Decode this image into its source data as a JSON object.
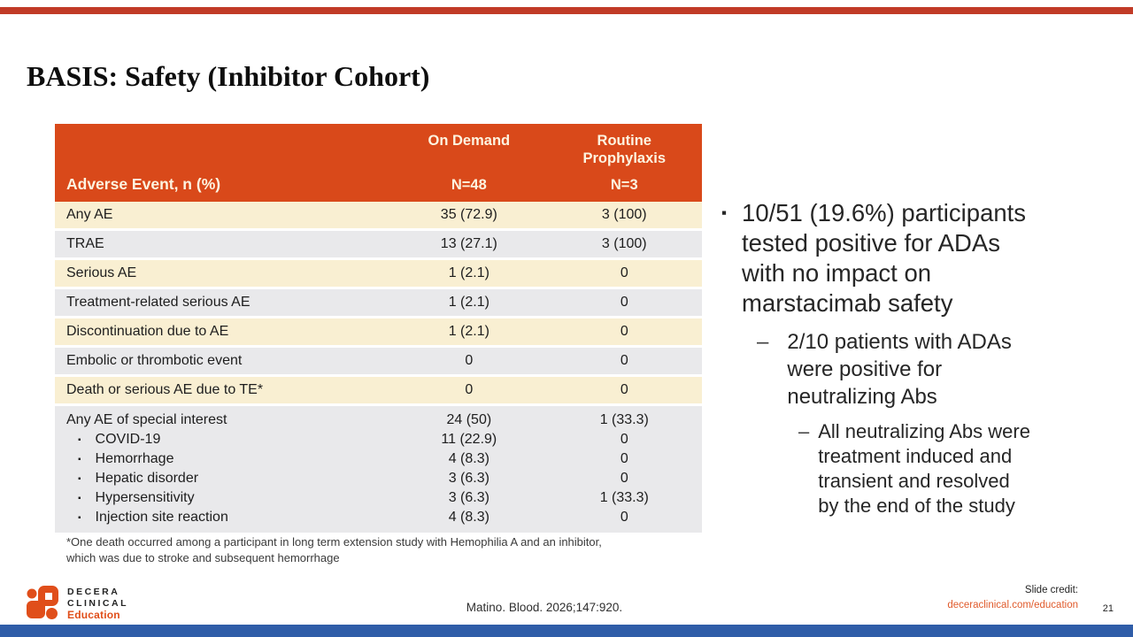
{
  "colors": {
    "top_bar": "#c13b27",
    "bottom_bar": "#2f5da8",
    "header_orange": "#d9491a",
    "row_cream": "#f9efd2",
    "row_gray": "#e9e9eb",
    "link_orange": "#e05a2b",
    "logo_orange": "#e04e1a"
  },
  "title": "BASIS: Safety (Inhibitor Cohort)",
  "table": {
    "header": {
      "col1": "Adverse Event, n (%)",
      "col2_group": "On Demand",
      "col2_n": "N=48",
      "col3_group_lines": [
        "Routine",
        "Prophylaxis"
      ],
      "col3_n": "N=3"
    },
    "rows": [
      {
        "label": "Any AE",
        "od": "35 (72.9)",
        "rp": "3 (100)",
        "shade": "cream"
      },
      {
        "label": "TRAE",
        "od": "13 (27.1)",
        "rp": "3 (100)",
        "shade": "gray"
      },
      {
        "label": "Serious AE",
        "od": "1 (2.1)",
        "rp": "0",
        "shade": "cream"
      },
      {
        "label": "Treatment-related serious AE",
        "od": "1 (2.1)",
        "rp": "0",
        "shade": "gray"
      },
      {
        "label": "Discontinuation due to AE",
        "od": "1 (2.1)",
        "rp": "0",
        "shade": "cream"
      },
      {
        "label": "Embolic or thrombotic event",
        "od": "0",
        "rp": "0",
        "shade": "gray"
      },
      {
        "label": "Death or serious AE due to TE*",
        "od": "0",
        "rp": "0",
        "shade": "cream"
      }
    ],
    "special_block": {
      "shade": "gray",
      "bullet_marker": "▪",
      "label": "Any AE of special interest",
      "od": "24 (50)",
      "rp": "1 (33.3)",
      "items": [
        {
          "label": "COVID-19",
          "od": "11 (22.9)",
          "rp": "0"
        },
        {
          "label": "Hemorrhage",
          "od": "4 (8.3)",
          "rp": "0"
        },
        {
          "label": "Hepatic disorder",
          "od": "3 (6.3)",
          "rp": "0"
        },
        {
          "label": "Hypersensitivity",
          "od": "3 (6.3)",
          "rp": "1 (33.3)"
        },
        {
          "label": "Injection site reaction",
          "od": "4 (8.3)",
          "rp": "0"
        }
      ]
    },
    "footnote_lines": [
      "*One death occurred among a participant in long term extension study with Hemophilia A and an inhibitor,",
      "which was due to stroke and subsequent hemorrhage"
    ]
  },
  "bullets": {
    "l1": {
      "marker": "▪",
      "lines": [
        "10/51 (19.6%) participants",
        "tested positive for ADAs",
        "with no impact on",
        "marstacimab safety"
      ]
    },
    "l2": {
      "marker": "–",
      "lines": [
        "2/10 patients with ADAs",
        "were positive for",
        "neutralizing Abs"
      ]
    },
    "l3": {
      "marker": "–",
      "lines": [
        "All neutralizing Abs were",
        "treatment induced and",
        "transient and resolved",
        "by the end of the study"
      ]
    }
  },
  "footer": {
    "logo_line1": "DECERA",
    "logo_line2": "CLINICAL",
    "logo_line3": "Education",
    "citation": "Matino. Blood. 2026;147:920.",
    "credit_label": "Slide credit:",
    "credit_link": "deceraclinical.com/education",
    "page_number": "21"
  }
}
